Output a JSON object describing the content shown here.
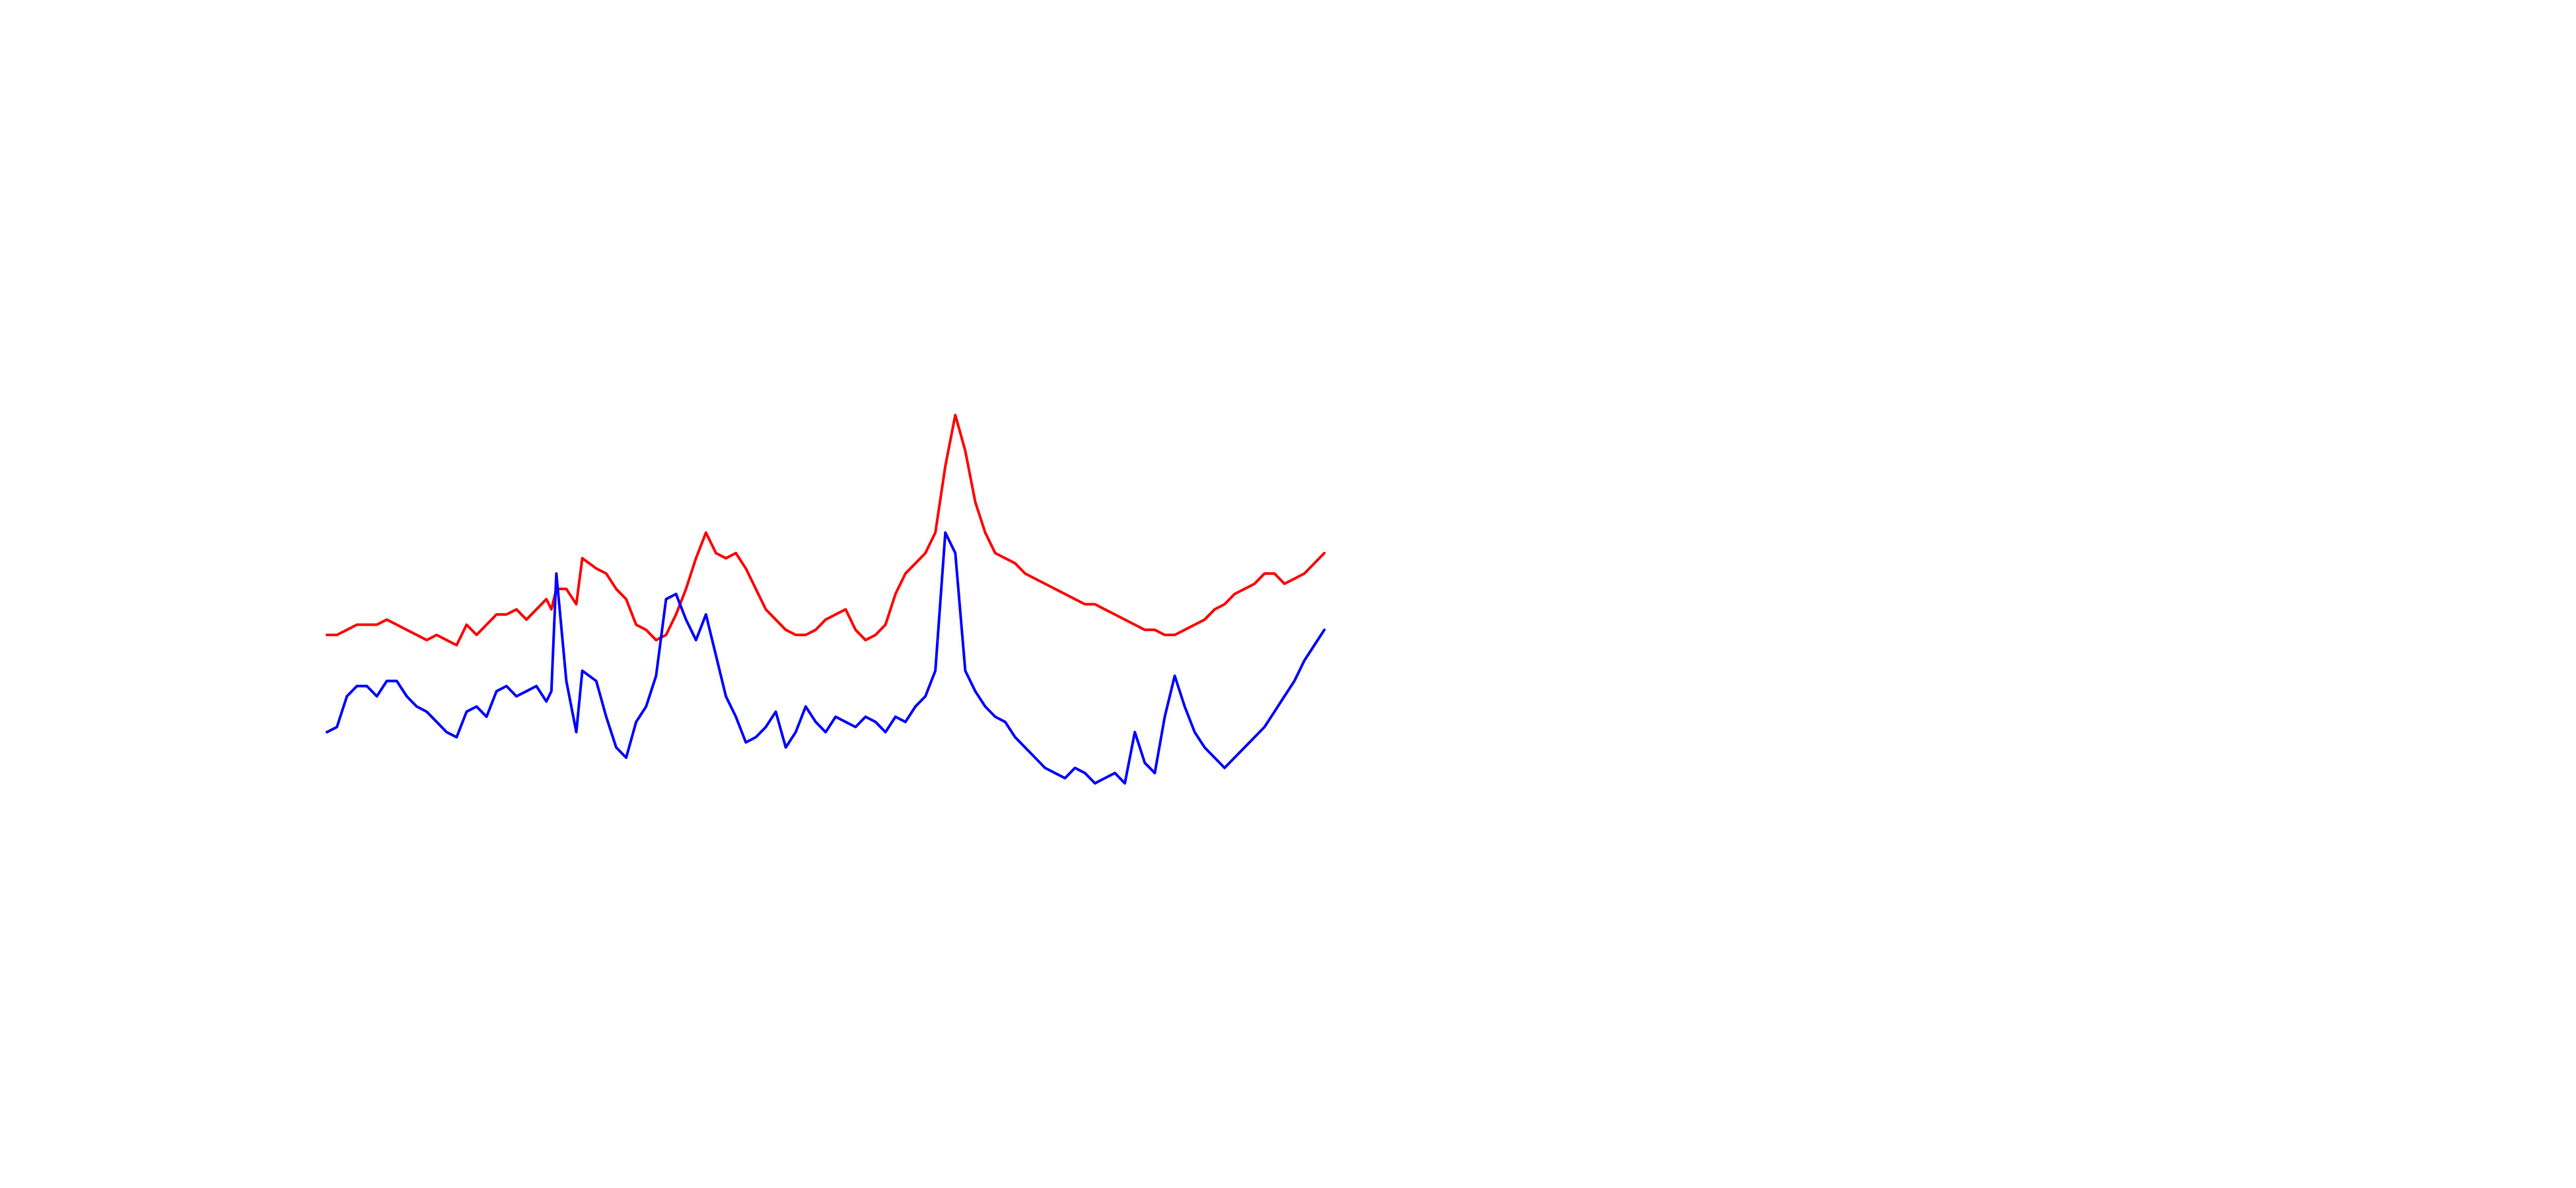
{
  "chart_data": {
    "type": "line",
    "title": "",
    "xlabel": "",
    "ylabel": "",
    "xlim": [
      0,
      100
    ],
    "ylim": [
      0,
      100
    ],
    "axes_visible": false,
    "grid": false,
    "legend": "none",
    "series": [
      {
        "color": "#ff0000",
        "points": [
          [
            0,
            52
          ],
          [
            1,
            52
          ],
          [
            2,
            53
          ],
          [
            3,
            54
          ],
          [
            4,
            54
          ],
          [
            5,
            54
          ],
          [
            6,
            55
          ],
          [
            7,
            54
          ],
          [
            8,
            53
          ],
          [
            9,
            52
          ],
          [
            10,
            51
          ],
          [
            11,
            52
          ],
          [
            12,
            51
          ],
          [
            13,
            50
          ],
          [
            14,
            54
          ],
          [
            15,
            52
          ],
          [
            16,
            54
          ],
          [
            17,
            56
          ],
          [
            18,
            56
          ],
          [
            19,
            57
          ],
          [
            20,
            55
          ],
          [
            21,
            57
          ],
          [
            22,
            59
          ],
          [
            22.5,
            57
          ],
          [
            23,
            61
          ],
          [
            24,
            61
          ],
          [
            25,
            58
          ],
          [
            25.6,
            67
          ],
          [
            27,
            65
          ],
          [
            28,
            64
          ],
          [
            29,
            61
          ],
          [
            30,
            59
          ],
          [
            31,
            54
          ],
          [
            32,
            53
          ],
          [
            33,
            51
          ],
          [
            34,
            52
          ],
          [
            35,
            56
          ],
          [
            36,
            61
          ],
          [
            37,
            67
          ],
          [
            38,
            72
          ],
          [
            39,
            68
          ],
          [
            40,
            67
          ],
          [
            41,
            68
          ],
          [
            42,
            65
          ],
          [
            43,
            61
          ],
          [
            44,
            57
          ],
          [
            45,
            55
          ],
          [
            46,
            53
          ],
          [
            47,
            52
          ],
          [
            48,
            52
          ],
          [
            49,
            53
          ],
          [
            50,
            55
          ],
          [
            51,
            56
          ],
          [
            52,
            57
          ],
          [
            53,
            53
          ],
          [
            54,
            51
          ],
          [
            55,
            52
          ],
          [
            56,
            54
          ],
          [
            57,
            60
          ],
          [
            58,
            64
          ],
          [
            59,
            66
          ],
          [
            60,
            68
          ],
          [
            61,
            72
          ],
          [
            62,
            85
          ],
          [
            63,
            95
          ],
          [
            64,
            88
          ],
          [
            65,
            78
          ],
          [
            66,
            72
          ],
          [
            67,
            68
          ],
          [
            68,
            67
          ],
          [
            69,
            66
          ],
          [
            70,
            64
          ],
          [
            71,
            63
          ],
          [
            72,
            62
          ],
          [
            73,
            61
          ],
          [
            74,
            60
          ],
          [
            75,
            59
          ],
          [
            76,
            58
          ],
          [
            77,
            58
          ],
          [
            78,
            57
          ],
          [
            79,
            56
          ],
          [
            80,
            55
          ],
          [
            81,
            54
          ],
          [
            82,
            53
          ],
          [
            83,
            53
          ],
          [
            84,
            52
          ],
          [
            85,
            52
          ],
          [
            86,
            53
          ],
          [
            87,
            54
          ],
          [
            88,
            55
          ],
          [
            89,
            57
          ],
          [
            90,
            58
          ],
          [
            91,
            60
          ],
          [
            92,
            61
          ],
          [
            93,
            62
          ],
          [
            94,
            64
          ],
          [
            95,
            64
          ],
          [
            96,
            62
          ],
          [
            97,
            63
          ],
          [
            98,
            64
          ],
          [
            99,
            66
          ],
          [
            100,
            68
          ]
        ]
      },
      {
        "color": "#0000ff",
        "points": [
          [
            0,
            33
          ],
          [
            1,
            34
          ],
          [
            2,
            40
          ],
          [
            3,
            42
          ],
          [
            4,
            42
          ],
          [
            5,
            40
          ],
          [
            6,
            43
          ],
          [
            7,
            43
          ],
          [
            8,
            40
          ],
          [
            9,
            38
          ],
          [
            10,
            37
          ],
          [
            11,
            35
          ],
          [
            12,
            33
          ],
          [
            13,
            32
          ],
          [
            14,
            37
          ],
          [
            15,
            38
          ],
          [
            16,
            36
          ],
          [
            17,
            41
          ],
          [
            18,
            42
          ],
          [
            19,
            40
          ],
          [
            20,
            41
          ],
          [
            21,
            42
          ],
          [
            22,
            39
          ],
          [
            22.5,
            41
          ],
          [
            23,
            64
          ],
          [
            24,
            43
          ],
          [
            25,
            33
          ],
          [
            25.6,
            45
          ],
          [
            27,
            43
          ],
          [
            28,
            36
          ],
          [
            29,
            30
          ],
          [
            30,
            28
          ],
          [
            31,
            35
          ],
          [
            32,
            38
          ],
          [
            33,
            44
          ],
          [
            34,
            59
          ],
          [
            35,
            60
          ],
          [
            36,
            55
          ],
          [
            37,
            51
          ],
          [
            38,
            56
          ],
          [
            39,
            48
          ],
          [
            40,
            40
          ],
          [
            41,
            36
          ],
          [
            42,
            31
          ],
          [
            43,
            32
          ],
          [
            44,
            34
          ],
          [
            45,
            37
          ],
          [
            46,
            30
          ],
          [
            47,
            33
          ],
          [
            48,
            38
          ],
          [
            49,
            35
          ],
          [
            50,
            33
          ],
          [
            51,
            36
          ],
          [
            52,
            35
          ],
          [
            53,
            34
          ],
          [
            54,
            36
          ],
          [
            55,
            35
          ],
          [
            56,
            33
          ],
          [
            57,
            36
          ],
          [
            58,
            35
          ],
          [
            59,
            38
          ],
          [
            60,
            40
          ],
          [
            61,
            45
          ],
          [
            62,
            72
          ],
          [
            63,
            68
          ],
          [
            64,
            45
          ],
          [
            65,
            41
          ],
          [
            66,
            38
          ],
          [
            67,
            36
          ],
          [
            68,
            35
          ],
          [
            69,
            32
          ],
          [
            70,
            30
          ],
          [
            71,
            28
          ],
          [
            72,
            26
          ],
          [
            73,
            25
          ],
          [
            74,
            24
          ],
          [
            75,
            26
          ],
          [
            76,
            25
          ],
          [
            77,
            23
          ],
          [
            78,
            24
          ],
          [
            79,
            25
          ],
          [
            80,
            23
          ],
          [
            81,
            33
          ],
          [
            82,
            27
          ],
          [
            83,
            25
          ],
          [
            84,
            36
          ],
          [
            85,
            44
          ],
          [
            86,
            38
          ],
          [
            87,
            33
          ],
          [
            88,
            30
          ],
          [
            89,
            28
          ],
          [
            90,
            26
          ],
          [
            91,
            28
          ],
          [
            92,
            30
          ],
          [
            93,
            32
          ],
          [
            94,
            34
          ],
          [
            95,
            37
          ],
          [
            96,
            40
          ],
          [
            97,
            43
          ],
          [
            98,
            47
          ],
          [
            99,
            50
          ],
          [
            100,
            53
          ]
        ]
      }
    ]
  }
}
